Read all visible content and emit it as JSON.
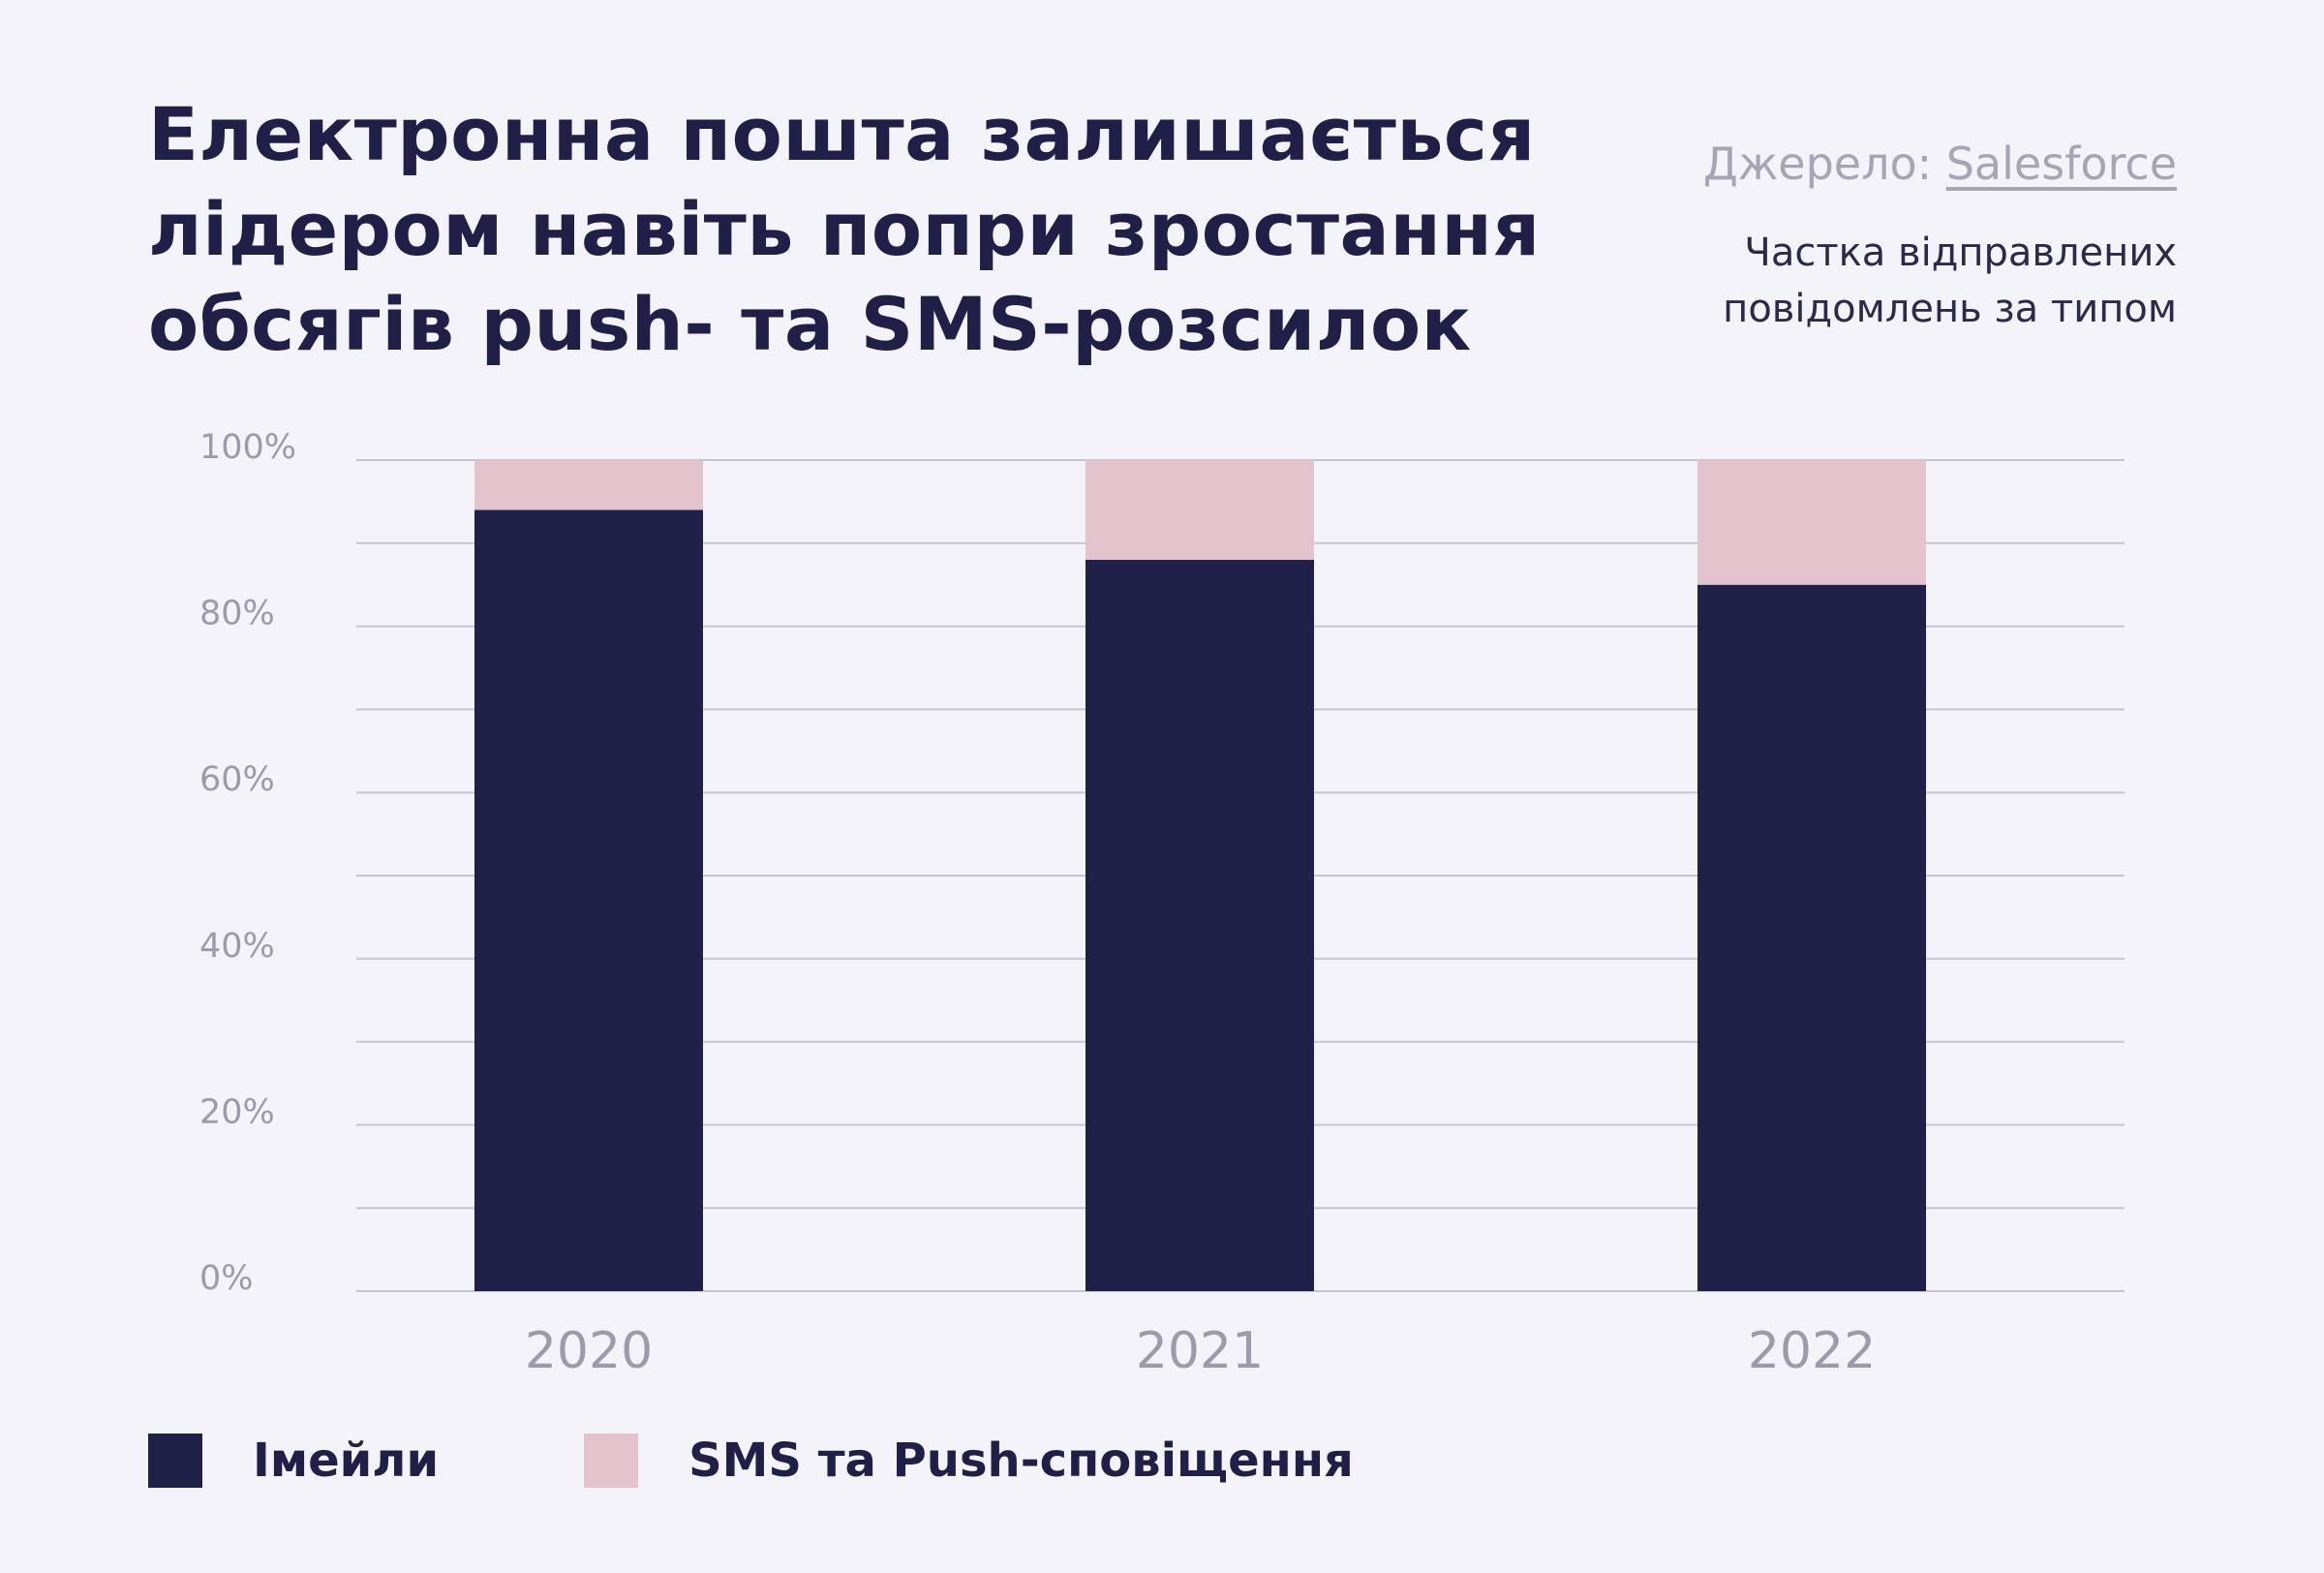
{
  "header": {
    "title_lines": [
      "Електронна пошта залишається",
      "лідером навіть попри зростання",
      "обсягів push- та SMS-розсилок"
    ],
    "source_prefix": "Джерело: ",
    "source_link": "Salesforce",
    "subtitle_lines": [
      "Частка відправлених",
      "повідомлень за типом"
    ]
  },
  "colors": {
    "background": "#f4f3f9",
    "email": "#1f2148",
    "sms_push": "#e3c3cc",
    "grid": "#c5c5d1",
    "tick_text": "#9b9bab"
  },
  "chart_data": {
    "type": "bar",
    "stacked": true,
    "categories": [
      "2020",
      "2021",
      "2022"
    ],
    "series": [
      {
        "name": "Імейли",
        "values": [
          94,
          88,
          85
        ]
      },
      {
        "name": "SMS та Push-сповіщення",
        "values": [
          6,
          12,
          15
        ]
      }
    ],
    "y_ticks": [
      "0%",
      "20%",
      "40%",
      "60%",
      "80%",
      "100%"
    ],
    "ylim": [
      0,
      100
    ],
    "grid_step": 10,
    "grid": true,
    "legend_position": "bottom-left",
    "xlabel": "",
    "ylabel": ""
  }
}
